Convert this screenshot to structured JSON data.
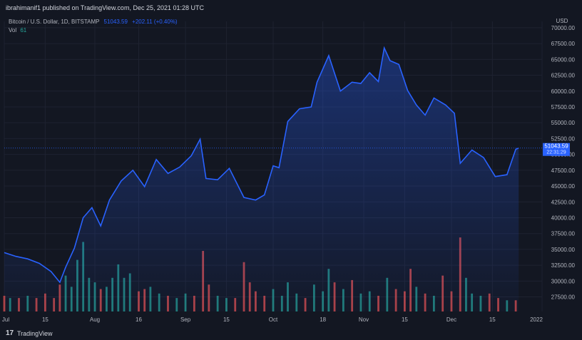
{
  "header": {
    "publisher_text": "ibrahimanif1 published on TradingView.com, Dec 25, 2021 01:28 UTC"
  },
  "legend": {
    "symbol": "Bitcoin / U.S. Dollar, 1D, BITSTAMP",
    "last": "51043.59",
    "change": "+202.11 (+0.40%)",
    "vol_label": "Vol",
    "vol_value": "61"
  },
  "footer": {
    "logo": "17",
    "brand": "TradingView"
  },
  "colors": {
    "background": "#131722",
    "line": "#2962ff",
    "volume_up": "#26a69a",
    "volume_down": "#ef5350",
    "text": "#b2b5be"
  },
  "chart_data": {
    "type": "area",
    "title": "",
    "currency_label": "USD",
    "price_tag": "51043.59",
    "price_tag_time": "22:31:29",
    "ylim": [
      25200,
      71000
    ],
    "y_ticks": [
      "70000.00",
      "67500.00",
      "65000.00",
      "62500.00",
      "60000.00",
      "57500.00",
      "55000.00",
      "52500.00",
      "50000.00",
      "47500.00",
      "45000.00",
      "42500.00",
      "40000.00",
      "37500.00",
      "35000.00",
      "32500.00",
      "30000.00",
      "27500.00"
    ],
    "y_tick_values": [
      70000,
      67500,
      65000,
      62500,
      60000,
      57500,
      55000,
      52500,
      50000,
      47500,
      45000,
      42500,
      40000,
      37500,
      35000,
      32500,
      30000,
      27500
    ],
    "x_ticks": [
      "Jul",
      "15",
      "Aug",
      "16",
      "Sep",
      "15",
      "Oct",
      "18",
      "Nov",
      "15",
      "Dec",
      "15",
      "2022"
    ],
    "x_tick_dates": [
      "2021-07-01",
      "2021-07-15",
      "2021-08-01",
      "2021-08-16",
      "2021-09-01",
      "2021-09-15",
      "2021-10-01",
      "2021-10-18",
      "2021-11-01",
      "2021-11-15",
      "2021-12-01",
      "2021-12-15",
      "2022-01-01"
    ],
    "series": [
      {
        "dates": [
          "2021-07-01",
          "2021-07-05",
          "2021-07-09",
          "2021-07-13",
          "2021-07-17",
          "2021-07-20",
          "2021-07-22",
          "2021-07-25",
          "2021-07-28",
          "2021-07-31",
          "2021-08-03",
          "2021-08-06",
          "2021-08-10",
          "2021-08-14",
          "2021-08-18",
          "2021-08-22",
          "2021-08-26",
          "2021-08-30",
          "2021-09-03",
          "2021-09-06",
          "2021-09-08",
          "2021-09-12",
          "2021-09-16",
          "2021-09-21",
          "2021-09-25",
          "2021-09-28",
          "2021-10-01",
          "2021-10-03",
          "2021-10-06",
          "2021-10-10",
          "2021-10-14",
          "2021-10-16",
          "2021-10-20",
          "2021-10-24",
          "2021-10-28",
          "2021-10-31",
          "2021-11-03",
          "2021-11-06",
          "2021-11-08",
          "2021-11-10",
          "2021-11-13",
          "2021-11-16",
          "2021-11-19",
          "2021-11-22",
          "2021-11-25",
          "2021-11-29",
          "2021-12-02",
          "2021-12-04",
          "2021-12-08",
          "2021-12-12",
          "2021-12-16",
          "2021-12-20",
          "2021-12-23",
          "2021-12-24"
        ],
        "values": [
          34500,
          33900,
          33500,
          32800,
          31500,
          29800,
          32200,
          35200,
          40000,
          41600,
          38700,
          42800,
          45800,
          47500,
          44900,
          49200,
          47000,
          48000,
          49800,
          52400,
          46200,
          46000,
          47800,
          43200,
          42800,
          43600,
          48200,
          47900,
          55200,
          57200,
          57500,
          61400,
          65600,
          60000,
          61400,
          61200,
          62900,
          61500,
          66800,
          64800,
          64200,
          60100,
          57800,
          56200,
          58900,
          57800,
          56500,
          48600,
          50700,
          49500,
          46500,
          46800,
          50800,
          51000
        ]
      }
    ],
    "volume": {
      "up_color": "#26a69a",
      "down_color": "#ef5350",
      "ylim": [
        0,
        34
      ],
      "bars": [
        {
          "date": "2021-07-01",
          "value": 7,
          "dir": "down"
        },
        {
          "date": "2021-07-03",
          "value": 6,
          "dir": "up"
        },
        {
          "date": "2021-07-06",
          "value": 6,
          "dir": "down"
        },
        {
          "date": "2021-07-09",
          "value": 7,
          "dir": "up"
        },
        {
          "date": "2021-07-12",
          "value": 6,
          "dir": "down"
        },
        {
          "date": "2021-07-15",
          "value": 8,
          "dir": "down"
        },
        {
          "date": "2021-07-18",
          "value": 6,
          "dir": "down"
        },
        {
          "date": "2021-07-20",
          "value": 12,
          "dir": "down"
        },
        {
          "date": "2021-07-22",
          "value": 16,
          "dir": "up"
        },
        {
          "date": "2021-07-24",
          "value": 11,
          "dir": "up"
        },
        {
          "date": "2021-07-26",
          "value": 23,
          "dir": "up"
        },
        {
          "date": "2021-07-28",
          "value": 31,
          "dir": "up"
        },
        {
          "date": "2021-07-30",
          "value": 15,
          "dir": "up"
        },
        {
          "date": "2021-08-01",
          "value": 13,
          "dir": "up"
        },
        {
          "date": "2021-08-03",
          "value": 10,
          "dir": "down"
        },
        {
          "date": "2021-08-05",
          "value": 11,
          "dir": "up"
        },
        {
          "date": "2021-08-07",
          "value": 15,
          "dir": "up"
        },
        {
          "date": "2021-08-09",
          "value": 21,
          "dir": "up"
        },
        {
          "date": "2021-08-11",
          "value": 15,
          "dir": "up"
        },
        {
          "date": "2021-08-13",
          "value": 17,
          "dir": "up"
        },
        {
          "date": "2021-08-16",
          "value": 9,
          "dir": "down"
        },
        {
          "date": "2021-08-18",
          "value": 10,
          "dir": "down"
        },
        {
          "date": "2021-08-20",
          "value": 11,
          "dir": "up"
        },
        {
          "date": "2021-08-23",
          "value": 8,
          "dir": "up"
        },
        {
          "date": "2021-08-26",
          "value": 7,
          "dir": "down"
        },
        {
          "date": "2021-08-29",
          "value": 6,
          "dir": "up"
        },
        {
          "date": "2021-09-01",
          "value": 8,
          "dir": "up"
        },
        {
          "date": "2021-09-04",
          "value": 7,
          "dir": "down"
        },
        {
          "date": "2021-09-07",
          "value": 27,
          "dir": "down"
        },
        {
          "date": "2021-09-09",
          "value": 12,
          "dir": "down"
        },
        {
          "date": "2021-09-12",
          "value": 7,
          "dir": "up"
        },
        {
          "date": "2021-09-15",
          "value": 6,
          "dir": "up"
        },
        {
          "date": "2021-09-18",
          "value": 6,
          "dir": "down"
        },
        {
          "date": "2021-09-21",
          "value": 22,
          "dir": "down"
        },
        {
          "date": "2021-09-23",
          "value": 13,
          "dir": "down"
        },
        {
          "date": "2021-09-25",
          "value": 9,
          "dir": "down"
        },
        {
          "date": "2021-09-28",
          "value": 7,
          "dir": "down"
        },
        {
          "date": "2021-10-01",
          "value": 10,
          "dir": "up"
        },
        {
          "date": "2021-10-04",
          "value": 7,
          "dir": "up"
        },
        {
          "date": "2021-10-06",
          "value": 13,
          "dir": "up"
        },
        {
          "date": "2021-10-09",
          "value": 8,
          "dir": "up"
        },
        {
          "date": "2021-10-12",
          "value": 6,
          "dir": "down"
        },
        {
          "date": "2021-10-15",
          "value": 12,
          "dir": "up"
        },
        {
          "date": "2021-10-18",
          "value": 9,
          "dir": "up"
        },
        {
          "date": "2021-10-20",
          "value": 19,
          "dir": "up"
        },
        {
          "date": "2021-10-22",
          "value": 13,
          "dir": "down"
        },
        {
          "date": "2021-10-25",
          "value": 10,
          "dir": "up"
        },
        {
          "date": "2021-10-28",
          "value": 14,
          "dir": "down"
        },
        {
          "date": "2021-10-31",
          "value": 8,
          "dir": "up"
        },
        {
          "date": "2021-11-03",
          "value": 9,
          "dir": "up"
        },
        {
          "date": "2021-11-06",
          "value": 7,
          "dir": "down"
        },
        {
          "date": "2021-11-09",
          "value": 15,
          "dir": "up"
        },
        {
          "date": "2021-11-12",
          "value": 10,
          "dir": "down"
        },
        {
          "date": "2021-11-15",
          "value": 9,
          "dir": "down"
        },
        {
          "date": "2021-11-17",
          "value": 19,
          "dir": "down"
        },
        {
          "date": "2021-11-19",
          "value": 11,
          "dir": "up"
        },
        {
          "date": "2021-11-22",
          "value": 8,
          "dir": "down"
        },
        {
          "date": "2021-11-25",
          "value": 7,
          "dir": "up"
        },
        {
          "date": "2021-11-28",
          "value": 16,
          "dir": "down"
        },
        {
          "date": "2021-12-01",
          "value": 9,
          "dir": "down"
        },
        {
          "date": "2021-12-04",
          "value": 33,
          "dir": "down"
        },
        {
          "date": "2021-12-06",
          "value": 15,
          "dir": "up"
        },
        {
          "date": "2021-12-08",
          "value": 8,
          "dir": "up"
        },
        {
          "date": "2021-12-11",
          "value": 7,
          "dir": "up"
        },
        {
          "date": "2021-12-14",
          "value": 8,
          "dir": "down"
        },
        {
          "date": "2021-12-17",
          "value": 6,
          "dir": "down"
        },
        {
          "date": "2021-12-20",
          "value": 5,
          "dir": "up"
        },
        {
          "date": "2021-12-23",
          "value": 5,
          "dir": "down"
        }
      ]
    }
  }
}
